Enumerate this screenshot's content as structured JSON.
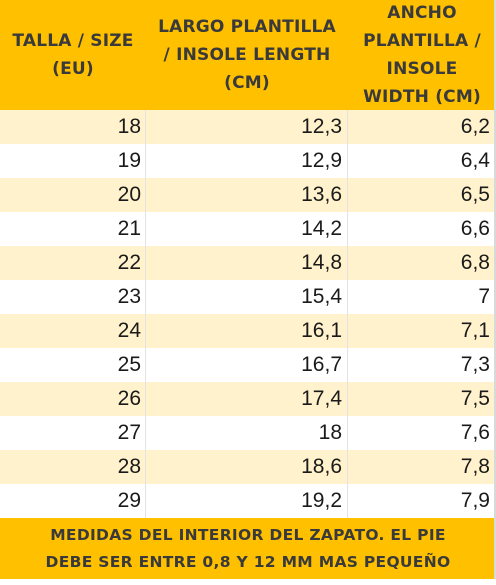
{
  "header": {
    "col1": [
      "TALLA / SIZE",
      "(EU)"
    ],
    "col2": [
      "LARGO PLANTILLA",
      "/ INSOLE LENGTH",
      "(CM)"
    ],
    "col3": [
      "ANCHO",
      "PLANTILLA /",
      "INSOLE",
      "WIDTH (CM)"
    ]
  },
  "rows": [
    {
      "size": "18",
      "length": "12,3",
      "width": "6,2"
    },
    {
      "size": "19",
      "length": "12,9",
      "width": "6,4"
    },
    {
      "size": "20",
      "length": "13,6",
      "width": "6,5"
    },
    {
      "size": "21",
      "length": "14,2",
      "width": "6,6"
    },
    {
      "size": "22",
      "length": "14,8",
      "width": "6,8"
    },
    {
      "size": "23",
      "length": "15,4",
      "width": "7"
    },
    {
      "size": "24",
      "length": "16,1",
      "width": "7,1"
    },
    {
      "size": "25",
      "length": "16,7",
      "width": "7,3"
    },
    {
      "size": "26",
      "length": "17,4",
      "width": "7,5"
    },
    {
      "size": "27",
      "length": "18",
      "width": "7,6"
    },
    {
      "size": "28",
      "length": "18,6",
      "width": "7,8"
    },
    {
      "size": "29",
      "length": "19,2",
      "width": "7,9"
    }
  ],
  "footer": {
    "line1": "MEDIDAS DEL INTERIOR DEL ZAPATO. EL PIE",
    "line2": "DEBE SER ENTRE 0,8 Y 12 MM MAS PEQUEÑO"
  },
  "colors": {
    "header_bg": "#ffc000",
    "band_bg": "#fff2cc",
    "text": "#3a3a3a"
  }
}
